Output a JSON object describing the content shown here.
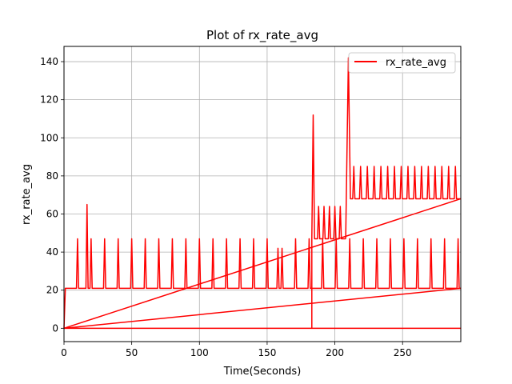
{
  "chart_data": {
    "type": "line",
    "title": "Plot of rx_rate_avg",
    "xlabel": "Time(Seconds)",
    "ylabel": "rx_rate_avg",
    "xlim": [
      0,
      293
    ],
    "ylim": [
      -7,
      148
    ],
    "grid": true,
    "legend_position": "top-right",
    "xticks": [
      0,
      50,
      100,
      150,
      200,
      250
    ],
    "yticks": [
      0,
      20,
      40,
      60,
      80,
      100,
      120,
      140
    ],
    "series": [
      {
        "name": "rx_rate_avg",
        "color": "#ff0000",
        "low_pulse_times": [
          10,
          17,
          20,
          30,
          40,
          50,
          60,
          70,
          80,
          90,
          100,
          110,
          120,
          130,
          140,
          150,
          158,
          161,
          171,
          181,
          191,
          201,
          211,
          221,
          231,
          241,
          251,
          261,
          271,
          281,
          291
        ],
        "low_pulse_values": [
          47,
          65,
          47,
          47,
          47,
          47,
          47,
          47,
          47,
          47,
          47,
          47,
          47,
          47,
          47,
          47,
          42,
          42,
          47,
          47,
          47,
          47,
          47,
          47,
          47,
          47,
          47,
          47,
          47,
          47,
          47
        ],
        "mid_pulse_times": [
          184,
          188,
          192,
          196,
          200,
          204,
          210
        ],
        "mid_pulse_values": [
          112,
          64,
          64,
          64,
          64,
          64,
          142
        ],
        "high_pulse_times": [
          214,
          219,
          224,
          229,
          234,
          239,
          244,
          249,
          254,
          259,
          264,
          269,
          274,
          279,
          284,
          289
        ],
        "high_pulse_value": 85,
        "baselines": [
          21,
          47,
          68
        ]
      }
    ]
  }
}
